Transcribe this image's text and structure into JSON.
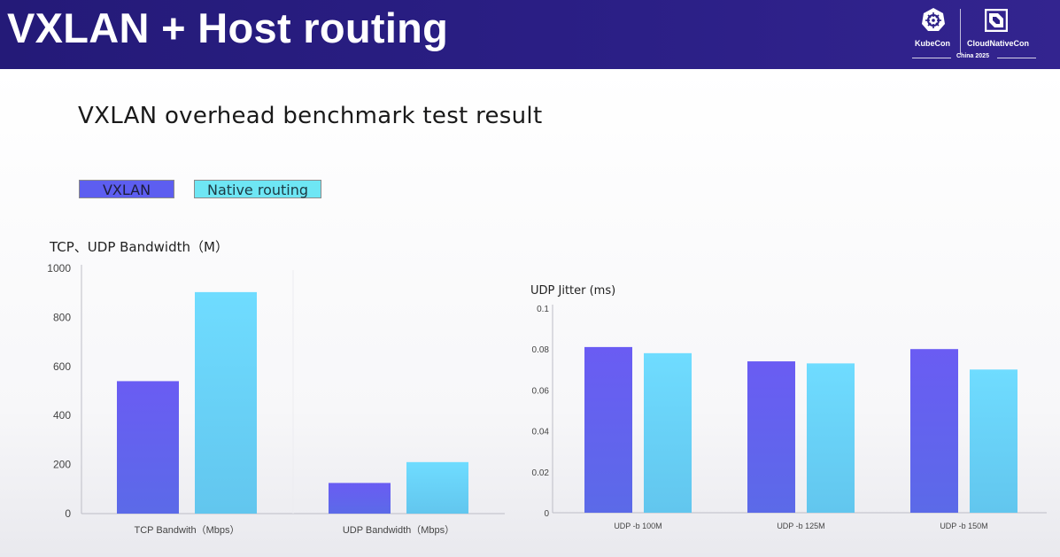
{
  "header": {
    "title": "VXLAN + Host routing",
    "logo": {
      "left_text": "KubeCon",
      "right_text": "CloudNativeCon",
      "subtext": "China 2025"
    }
  },
  "subtitle": "VXLAN overhead benchmark test result",
  "legend": [
    {
      "label": "VXLAN",
      "color": "#5d5ef0"
    },
    {
      "label": "Native routing",
      "color": "#6ee6f4"
    }
  ],
  "colors": {
    "vxlan_top": "#6a5cf3",
    "vxlan_bottom": "#5b6ae8",
    "native_top": "#6fdcff",
    "native_bottom": "#62c6ee"
  },
  "chart_data": [
    {
      "type": "bar",
      "title": "TCP、UDP Bandwidth（M）",
      "categories": [
        "TCP Bandwith（Mbps）",
        "UDP Bandwidth（Mbps）"
      ],
      "series": [
        {
          "name": "VXLAN",
          "values": [
            540,
            125
          ]
        },
        {
          "name": "Native routing",
          "values": [
            903,
            210
          ]
        }
      ],
      "ylim": [
        0,
        1000
      ],
      "yticks": [
        0,
        200,
        400,
        600,
        800,
        1000
      ],
      "grid": false
    },
    {
      "type": "bar",
      "title": "UDP Jitter (ms)",
      "categories": [
        "UDP -b 100M",
        "UDP -b 125M",
        "UDP -b 150M"
      ],
      "series": [
        {
          "name": "VXLAN",
          "values": [
            0.081,
            0.074,
            0.08
          ]
        },
        {
          "name": "Native routing",
          "values": [
            0.078,
            0.073,
            0.07
          ]
        }
      ],
      "ylim": [
        0,
        0.1
      ],
      "yticks": [
        "0",
        "0.02",
        "0.04",
        "0.06",
        "0.08",
        "0.1"
      ],
      "grid": false
    }
  ]
}
